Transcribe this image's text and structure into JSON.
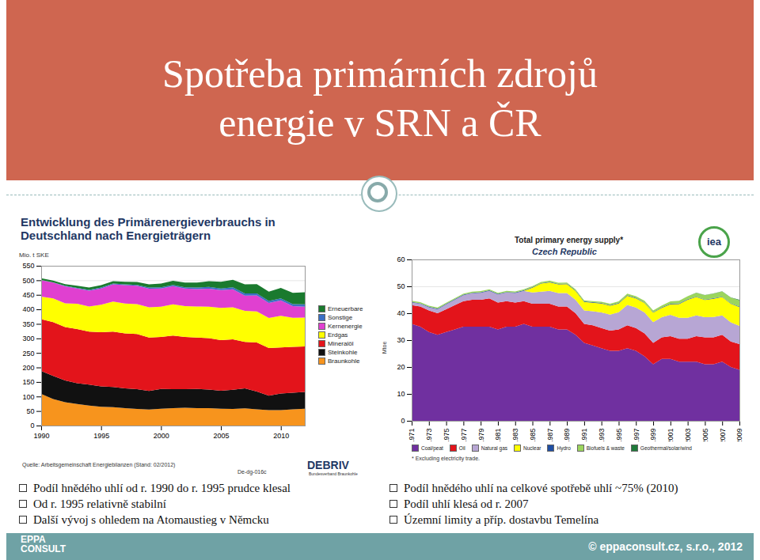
{
  "slide": {
    "title": "Spotřeba primárních zdrojů energie v SRN a ČR",
    "bullets_left": [
      "Podíl hnědého uhlí od r. 1990 do r. 1995 prudce klesal",
      "Od r. 1995 relativně stabilní",
      "Další vývoj s ohledem na Atomaustieg v Němcku"
    ],
    "bullets_right": [
      "Podíl hnědého uhlí na celkové spotřebě uhlí ~75% (2010)",
      "Podíl uhlí klesá od r. 2007",
      "Územní limity a příp. dostavbu Temelína"
    ],
    "footer": "© eppaconsult.cz, s.r.o., 2012",
    "logo": [
      "EPPA",
      "CONSULT"
    ]
  },
  "chart_data": [
    {
      "type": "area",
      "stacked": true,
      "title": "Entwicklung des Primärenergieverbrauchs in Deutschland nach Energieträgern",
      "y_label": "Mio. t SKE",
      "x": [
        1990,
        1991,
        1992,
        1993,
        1994,
        1995,
        1996,
        1997,
        1998,
        1999,
        2000,
        2001,
        2002,
        2003,
        2004,
        2005,
        2006,
        2007,
        2008,
        2009,
        2010,
        2011,
        2012
      ],
      "xlim": [
        1990,
        2012
      ],
      "xticks": [
        1990,
        1995,
        2000,
        2005,
        2010
      ],
      "ylim": [
        0,
        550
      ],
      "yticks": [
        0,
        50,
        100,
        150,
        200,
        250,
        300,
        350,
        400,
        450,
        500,
        550
      ],
      "grid": true,
      "legend": "right",
      "series": [
        {
          "name": "Braunkohle",
          "color": "#f7941d",
          "values": [
            109,
            91,
            80,
            74,
            69,
            65,
            63,
            60,
            57,
            55,
            58,
            60,
            61,
            60,
            60,
            58,
            57,
            59,
            56,
            53,
            53,
            56,
            58
          ]
        },
        {
          "name": "Steinkohle",
          "color": "#111111",
          "values": [
            79,
            80,
            75,
            72,
            72,
            70,
            70,
            68,
            68,
            64,
            68,
            65,
            64,
            66,
            64,
            62,
            66,
            69,
            61,
            50,
            57,
            57,
            58
          ]
        },
        {
          "name": "Mineralöl",
          "color": "#e3141b",
          "values": [
            178,
            185,
            184,
            186,
            182,
            186,
            190,
            189,
            190,
            184,
            179,
            185,
            180,
            177,
            177,
            174,
            174,
            160,
            169,
            164,
            159,
            158,
            156
          ]
        },
        {
          "name": "Erdgas",
          "color": "#ffff00",
          "values": [
            78,
            82,
            82,
            87,
            87,
            95,
            104,
            103,
            103,
            104,
            104,
            107,
            106,
            107,
            108,
            111,
            110,
            107,
            107,
            103,
            109,
            100,
            100
          ]
        },
        {
          "name": "Kernenergie",
          "color": "#e040d0",
          "values": [
            56,
            54,
            58,
            53,
            54,
            56,
            59,
            63,
            63,
            64,
            63,
            63,
            61,
            60,
            62,
            61,
            62,
            52,
            55,
            52,
            53,
            40,
            37
          ]
        },
        {
          "name": "Sonstige",
          "color": "#3b6fc4",
          "values": [
            1,
            1,
            2,
            2,
            3,
            3,
            3,
            3,
            3,
            4,
            4,
            4,
            4,
            5,
            6,
            6,
            7,
            8,
            7,
            7,
            7,
            7,
            8
          ]
        },
        {
          "name": "Erneuerbare",
          "color": "#1a7a2e",
          "values": [
            6,
            6,
            6,
            7,
            8,
            8,
            8,
            9,
            10,
            11,
            13,
            14,
            16,
            17,
            20,
            23,
            26,
            31,
            32,
            32,
            36,
            39,
            42
          ]
        }
      ],
      "source": "Quelle: Arbeitsgemeinschaft Energiebilanzen (Stand: 02/2012)",
      "code": "De-dg-016c",
      "logo": "DEBRIV",
      "logo_subtitle": "Bundesverband Braunkohle"
    },
    {
      "type": "area",
      "stacked": true,
      "title": "Total primary energy supply*",
      "subtitle": "Czech Republic",
      "y_label": "Mtoe",
      "x": [
        1971,
        1972,
        1973,
        1974,
        1975,
        1976,
        1977,
        1978,
        1979,
        1980,
        1981,
        1982,
        1983,
        1984,
        1985,
        1986,
        1987,
        1988,
        1989,
        1990,
        1991,
        1992,
        1993,
        1994,
        1995,
        1996,
        1997,
        1998,
        1999,
        2000,
        2001,
        2002,
        2003,
        2004,
        2005,
        2006,
        2007,
        2008,
        2009
      ],
      "xlim": [
        1971,
        2009
      ],
      "xticks": [
        1971,
        1973,
        1975,
        1977,
        1979,
        1981,
        1983,
        1985,
        1987,
        1989,
        1991,
        1993,
        1995,
        1997,
        1999,
        2001,
        2003,
        2005,
        2007,
        2009
      ],
      "ylim": [
        0,
        60
      ],
      "yticks": [
        0,
        10,
        20,
        30,
        40,
        50,
        60
      ],
      "grid": true,
      "legend": "bottom",
      "series": [
        {
          "name": "Coal/peat",
          "color": "#7030a0",
          "values": [
            36,
            35,
            33,
            32,
            33,
            34,
            35,
            35,
            35,
            35,
            34,
            35,
            35,
            36,
            35,
            35,
            35,
            34,
            34,
            32,
            29,
            28,
            27,
            26,
            26,
            27,
            26,
            24,
            21,
            23,
            23,
            22,
            22,
            22,
            21,
            21,
            22,
            20,
            19
          ]
        },
        {
          "name": "Oil",
          "color": "#e3141b",
          "values": [
            7,
            7.5,
            8,
            8,
            8.5,
            9,
            9.5,
            10,
            10,
            10.5,
            10,
            9.5,
            9,
            8.5,
            8.5,
            8.5,
            8.5,
            8.5,
            8.5,
            8,
            7,
            7.5,
            7.5,
            7.5,
            8,
            8.5,
            8.5,
            8.5,
            8,
            8,
            8.5,
            8.5,
            8.5,
            9.5,
            10,
            10,
            10,
            9.5,
            9.5
          ]
        },
        {
          "name": "Natural gas",
          "color": "#b7a6d4",
          "values": [
            1,
            1,
            1.2,
            1.5,
            1.8,
            2,
            2.2,
            2.4,
            2.6,
            2.8,
            3,
            3.2,
            3.5,
            3.8,
            4.2,
            4.5,
            4.8,
            5,
            5,
            5,
            5,
            5.2,
            5.8,
            6,
            6.4,
            7.6,
            7.6,
            7.8,
            7.7,
            7.5,
            7.9,
            7.8,
            7.8,
            7.7,
            7.5,
            7.6,
            7.2,
            7.1,
            6.8
          ]
        },
        {
          "name": "Nuclear",
          "color": "#ffff00",
          "values": [
            0,
            0,
            0,
            0,
            0,
            0,
            0,
            0,
            0,
            0,
            0,
            0,
            0,
            0,
            1.8,
            3,
            3.2,
            3.2,
            3.3,
            3.3,
            3.2,
            3.2,
            3.3,
            3.3,
            3.2,
            3.4,
            3.4,
            3.5,
            3.5,
            3.5,
            3.9,
            5.1,
            6.7,
            6.8,
            6.4,
            6.8,
            6.8,
            6.9,
            7
          ]
        },
        {
          "name": "Hydro",
          "color": "#1f4ea3",
          "values": [
            0.2,
            0.2,
            0.2,
            0.2,
            0.2,
            0.2,
            0.2,
            0.2,
            0.2,
            0.2,
            0.2,
            0.2,
            0.2,
            0.2,
            0.2,
            0.2,
            0.2,
            0.2,
            0.2,
            0.2,
            0.2,
            0.2,
            0.2,
            0.2,
            0.2,
            0.2,
            0.2,
            0.2,
            0.2,
            0.2,
            0.2,
            0.2,
            0.2,
            0.2,
            0.2,
            0.2,
            0.2,
            0.2,
            0.2
          ]
        },
        {
          "name": "Biofuels & waste",
          "color": "#9bd55d",
          "values": [
            0.4,
            0.4,
            0.4,
            0.4,
            0.4,
            0.4,
            0.4,
            0.4,
            0.4,
            0.4,
            0.4,
            0.4,
            0.4,
            0.4,
            0.4,
            0.4,
            0.4,
            0.4,
            0.4,
            0.4,
            0.4,
            0.4,
            0.5,
            0.5,
            0.6,
            0.6,
            0.6,
            0.6,
            0.6,
            0.7,
            0.9,
            1,
            1.1,
            1.4,
            1.6,
            1.7,
            1.9,
            2.1,
            2.3
          ]
        },
        {
          "name": "Geothermal/solar/wind",
          "color": "#1f7a3a",
          "values": [
            0,
            0,
            0,
            0,
            0,
            0,
            0,
            0,
            0,
            0,
            0,
            0,
            0,
            0,
            0,
            0,
            0,
            0,
            0,
            0,
            0,
            0,
            0,
            0,
            0,
            0,
            0,
            0,
            0,
            0,
            0,
            0,
            0,
            0.02,
            0.03,
            0.04,
            0.06,
            0.08,
            0.2
          ]
        }
      ],
      "footnote": "* Excluding electricity trade.",
      "logo": "iea"
    }
  ]
}
